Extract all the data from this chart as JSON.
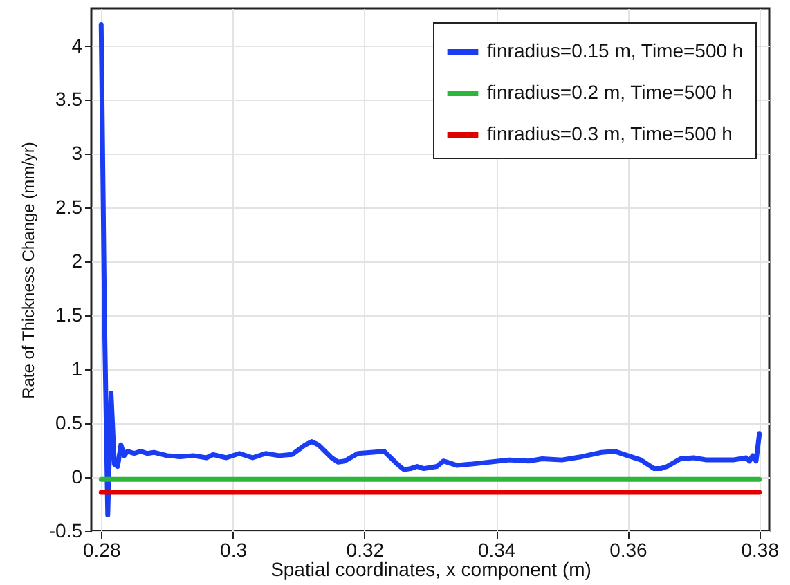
{
  "chart_data": {
    "type": "line",
    "xlabel": "Spatial coordinates, x component (m)",
    "ylabel": "Rate of Thickness Change (mm/yr)",
    "xlim": [
      0.2785,
      0.3815
    ],
    "ylim": [
      -0.5,
      4.35
    ],
    "xticks": [
      0.28,
      0.3,
      0.32,
      0.34,
      0.36,
      0.38
    ],
    "yticks": [
      -0.5,
      0,
      0.5,
      1,
      1.5,
      2,
      2.5,
      3,
      3.5,
      4
    ],
    "grid": true,
    "legend": "top right",
    "line_style": "solid",
    "marker": "none",
    "series": [
      {
        "name": "finradius=0.15 m, Time=500 h",
        "color": "#1a3cf2",
        "x": [
          0.28,
          0.2805,
          0.281,
          0.2815,
          0.282,
          0.2825,
          0.283,
          0.2835,
          0.284,
          0.285,
          0.286,
          0.287,
          0.288,
          0.29,
          0.292,
          0.294,
          0.296,
          0.297,
          0.299,
          0.301,
          0.303,
          0.305,
          0.307,
          0.309,
          0.311,
          0.312,
          0.313,
          0.315,
          0.316,
          0.317,
          0.319,
          0.323,
          0.325,
          0.326,
          0.327,
          0.328,
          0.329,
          0.331,
          0.332,
          0.334,
          0.336,
          0.339,
          0.342,
          0.345,
          0.347,
          0.35,
          0.353,
          0.356,
          0.358,
          0.36,
          0.362,
          0.364,
          0.365,
          0.366,
          0.368,
          0.37,
          0.372,
          0.376,
          0.378,
          0.3785,
          0.379,
          0.3795,
          0.38
        ],
        "values": [
          4.2,
          1.5,
          -0.35,
          0.78,
          0.12,
          0.1,
          0.3,
          0.2,
          0.24,
          0.22,
          0.24,
          0.22,
          0.23,
          0.2,
          0.19,
          0.2,
          0.18,
          0.21,
          0.18,
          0.22,
          0.18,
          0.22,
          0.2,
          0.21,
          0.3,
          0.33,
          0.3,
          0.18,
          0.14,
          0.15,
          0.22,
          0.24,
          0.12,
          0.07,
          0.08,
          0.1,
          0.08,
          0.1,
          0.15,
          0.11,
          0.12,
          0.14,
          0.16,
          0.15,
          0.17,
          0.16,
          0.19,
          0.23,
          0.24,
          0.2,
          0.16,
          0.08,
          0.08,
          0.1,
          0.17,
          0.18,
          0.16,
          0.16,
          0.18,
          0.15,
          0.2,
          0.15,
          0.4
        ]
      },
      {
        "name": "finradius=0.2 m, Time=500 h",
        "color": "#2db53c",
        "x": [
          0.28,
          0.38
        ],
        "values": [
          -0.02,
          -0.02
        ]
      },
      {
        "name": "finradius=0.3 m, Time=500 h",
        "color": "#e00000",
        "x": [
          0.28,
          0.38
        ],
        "values": [
          -0.14,
          -0.14
        ]
      }
    ]
  }
}
